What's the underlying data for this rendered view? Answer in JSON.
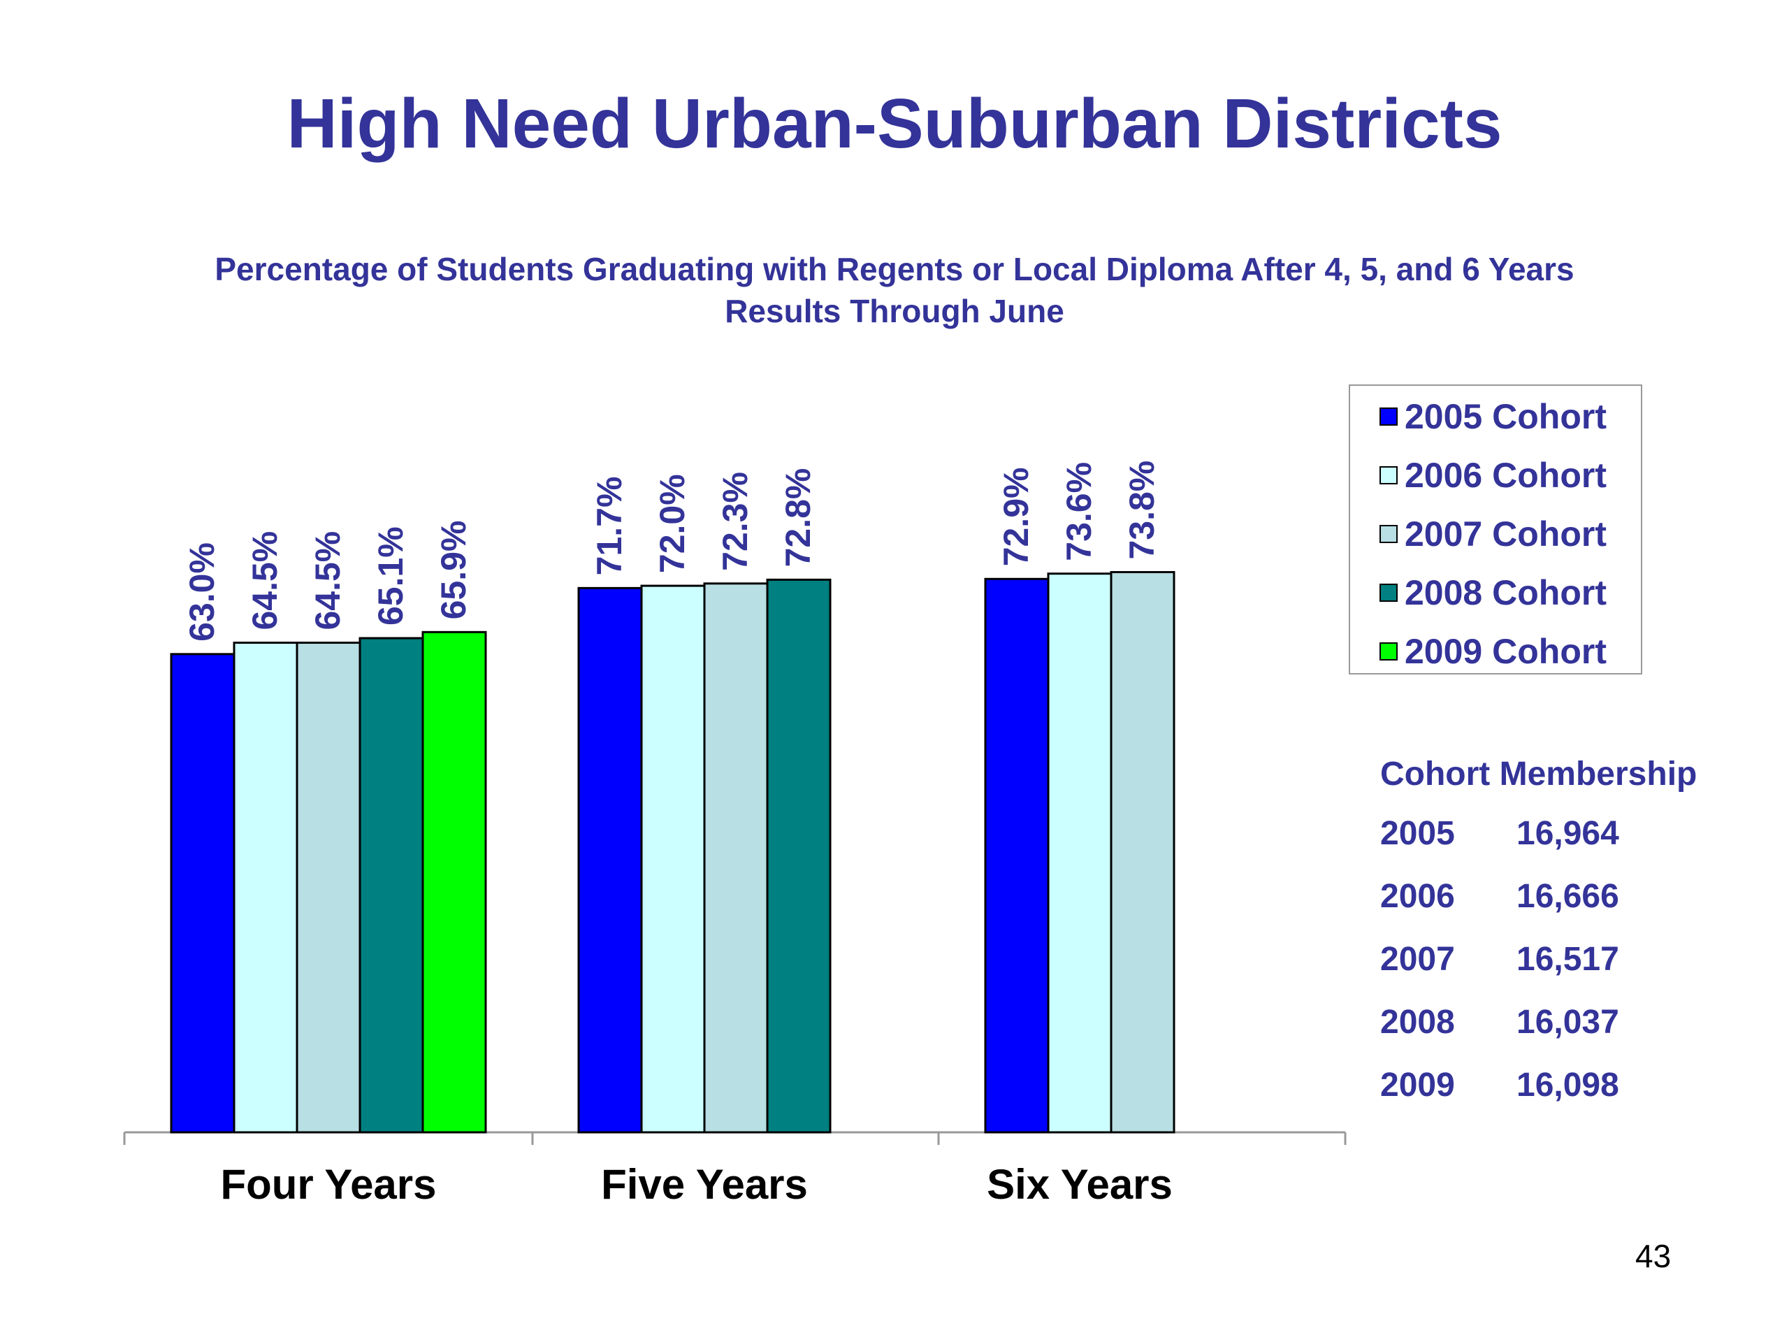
{
  "title": "High Need Urban-Suburban Districts",
  "subtitle_line1": "Percentage of Students Graduating with Regents or Local Diploma After 4, 5, and 6 Years",
  "subtitle_line2": "Results Through June",
  "page_number": "43",
  "membership": {
    "title": "Cohort Membership",
    "rows": [
      {
        "year": "2005",
        "count": "16,964"
      },
      {
        "year": "2006",
        "count": "16,666"
      },
      {
        "year": "2007",
        "count": "16,517"
      },
      {
        "year": "2008",
        "count": "16,037"
      },
      {
        "year": "2009",
        "count": "16,098"
      }
    ]
  },
  "chart_data": {
    "type": "bar",
    "categories": [
      "Four Years",
      "Five Years",
      "Six Years"
    ],
    "series": [
      {
        "name": "2005 Cohort",
        "color": "#0000FF",
        "values": [
          63.0,
          71.7,
          72.9
        ]
      },
      {
        "name": "2006 Cohort",
        "color": "#CCFFFF",
        "values": [
          64.5,
          72.0,
          73.6
        ]
      },
      {
        "name": "2007 Cohort",
        "color": "#B8DFE3",
        "values": [
          64.5,
          72.3,
          73.8
        ]
      },
      {
        "name": "2008 Cohort",
        "color": "#008080",
        "values": [
          65.1,
          72.8,
          null
        ]
      },
      {
        "name": "2009 Cohort",
        "color": "#00FF00",
        "values": [
          65.9,
          null,
          null
        ]
      }
    ],
    "data_labels": [
      [
        "63.0%",
        "71.7%",
        "72.9%"
      ],
      [
        "64.5%",
        "72.0%",
        "73.6%"
      ],
      [
        "64.5%",
        "72.3%",
        "73.8%"
      ],
      [
        "65.1%",
        "72.8%",
        ""
      ],
      [
        "65.9%",
        "",
        ""
      ]
    ],
    "label_color": "#333399",
    "legend_position": "right",
    "grid": false
  }
}
